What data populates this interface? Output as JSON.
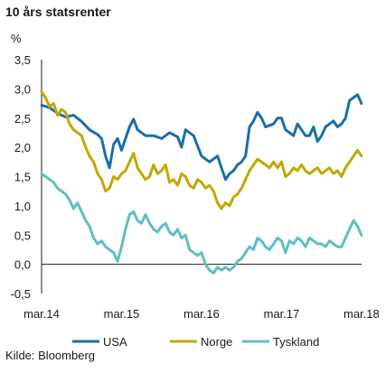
{
  "chart_data": {
    "type": "line",
    "title": "10 års statsrenter",
    "ylabel": "%",
    "source": "Kilde: Bloomberg",
    "ylim": [
      -0.5,
      3.5
    ],
    "yticks": [
      "3,5",
      "3,0",
      "2,5",
      "2,0",
      "1,5",
      "1,0",
      "0,5",
      "0,0",
      "-0,5"
    ],
    "xlim": [
      2014.0,
      2018.0
    ],
    "xticks": [
      {
        "value": 2014.0,
        "label": "mar.14"
      },
      {
        "value": 2015.0,
        "label": "mar.15"
      },
      {
        "value": 2016.0,
        "label": "mar.16"
      },
      {
        "value": 2017.0,
        "label": "mar.17"
      },
      {
        "value": 2018.0,
        "label": "mar.18"
      }
    ],
    "grid": false,
    "legend_position": "bottom",
    "series": [
      {
        "name": "USA",
        "color": "#1a6fa8",
        "points": [
          [
            2014.0,
            2.72
          ],
          [
            2014.1,
            2.68
          ],
          [
            2014.2,
            2.58
          ],
          [
            2014.3,
            2.52
          ],
          [
            2014.4,
            2.55
          ],
          [
            2014.5,
            2.44
          ],
          [
            2014.6,
            2.3
          ],
          [
            2014.7,
            2.22
          ],
          [
            2014.75,
            2.15
          ],
          [
            2014.8,
            1.85
          ],
          [
            2014.85,
            1.65
          ],
          [
            2014.9,
            2.05
          ],
          [
            2014.95,
            2.15
          ],
          [
            2015.0,
            1.95
          ],
          [
            2015.1,
            2.35
          ],
          [
            2015.15,
            2.48
          ],
          [
            2015.2,
            2.3
          ],
          [
            2015.3,
            2.2
          ],
          [
            2015.4,
            2.2
          ],
          [
            2015.5,
            2.15
          ],
          [
            2015.6,
            2.25
          ],
          [
            2015.7,
            2.18
          ],
          [
            2015.75,
            2.0
          ],
          [
            2015.8,
            2.3
          ],
          [
            2015.9,
            2.2
          ],
          [
            2016.0,
            1.85
          ],
          [
            2016.1,
            1.75
          ],
          [
            2016.2,
            1.85
          ],
          [
            2016.25,
            1.65
          ],
          [
            2016.3,
            1.45
          ],
          [
            2016.35,
            1.55
          ],
          [
            2016.4,
            1.6
          ],
          [
            2016.45,
            1.7
          ],
          [
            2016.5,
            1.75
          ],
          [
            2016.55,
            1.85
          ],
          [
            2016.6,
            2.35
          ],
          [
            2016.65,
            2.45
          ],
          [
            2016.7,
            2.6
          ],
          [
            2016.75,
            2.5
          ],
          [
            2016.8,
            2.35
          ],
          [
            2016.9,
            2.4
          ],
          [
            2016.95,
            2.5
          ],
          [
            2017.0,
            2.5
          ],
          [
            2017.05,
            2.3
          ],
          [
            2017.1,
            2.25
          ],
          [
            2017.15,
            2.2
          ],
          [
            2017.2,
            2.4
          ],
          [
            2017.25,
            2.3
          ],
          [
            2017.3,
            2.2
          ],
          [
            2017.35,
            2.2
          ],
          [
            2017.4,
            2.35
          ],
          [
            2017.45,
            2.1
          ],
          [
            2017.5,
            2.2
          ],
          [
            2017.55,
            2.35
          ],
          [
            2017.6,
            2.4
          ],
          [
            2017.65,
            2.45
          ],
          [
            2017.7,
            2.35
          ],
          [
            2017.75,
            2.4
          ],
          [
            2017.8,
            2.5
          ],
          [
            2017.85,
            2.8
          ],
          [
            2017.9,
            2.85
          ],
          [
            2017.95,
            2.9
          ],
          [
            2018.0,
            2.75
          ]
        ]
      },
      {
        "name": "Norge",
        "color": "#c2a800",
        "points": [
          [
            2014.0,
            2.95
          ],
          [
            2014.05,
            2.85
          ],
          [
            2014.1,
            2.7
          ],
          [
            2014.15,
            2.75
          ],
          [
            2014.2,
            2.55
          ],
          [
            2014.25,
            2.65
          ],
          [
            2014.3,
            2.6
          ],
          [
            2014.35,
            2.4
          ],
          [
            2014.4,
            2.3
          ],
          [
            2014.45,
            2.25
          ],
          [
            2014.5,
            2.2
          ],
          [
            2014.55,
            2.0
          ],
          [
            2014.6,
            1.85
          ],
          [
            2014.65,
            1.75
          ],
          [
            2014.7,
            1.55
          ],
          [
            2014.75,
            1.45
          ],
          [
            2014.8,
            1.25
          ],
          [
            2014.85,
            1.3
          ],
          [
            2014.9,
            1.5
          ],
          [
            2014.95,
            1.45
          ],
          [
            2015.0,
            1.55
          ],
          [
            2015.05,
            1.6
          ],
          [
            2015.1,
            1.75
          ],
          [
            2015.15,
            1.9
          ],
          [
            2015.2,
            1.65
          ],
          [
            2015.25,
            1.55
          ],
          [
            2015.3,
            1.45
          ],
          [
            2015.35,
            1.5
          ],
          [
            2015.4,
            1.7
          ],
          [
            2015.45,
            1.55
          ],
          [
            2015.5,
            1.6
          ],
          [
            2015.55,
            1.7
          ],
          [
            2015.6,
            1.4
          ],
          [
            2015.65,
            1.45
          ],
          [
            2015.7,
            1.35
          ],
          [
            2015.75,
            1.55
          ],
          [
            2015.8,
            1.5
          ],
          [
            2015.85,
            1.35
          ],
          [
            2015.9,
            1.3
          ],
          [
            2015.95,
            1.45
          ],
          [
            2016.0,
            1.4
          ],
          [
            2016.05,
            1.3
          ],
          [
            2016.1,
            1.35
          ],
          [
            2016.15,
            1.25
          ],
          [
            2016.2,
            1.05
          ],
          [
            2016.25,
            0.95
          ],
          [
            2016.3,
            1.05
          ],
          [
            2016.35,
            1.0
          ],
          [
            2016.4,
            1.15
          ],
          [
            2016.45,
            1.2
          ],
          [
            2016.5,
            1.3
          ],
          [
            2016.55,
            1.45
          ],
          [
            2016.6,
            1.6
          ],
          [
            2016.65,
            1.7
          ],
          [
            2016.7,
            1.8
          ],
          [
            2016.75,
            1.75
          ],
          [
            2016.8,
            1.7
          ],
          [
            2016.85,
            1.65
          ],
          [
            2016.9,
            1.75
          ],
          [
            2016.95,
            1.65
          ],
          [
            2017.0,
            1.75
          ],
          [
            2017.05,
            1.5
          ],
          [
            2017.1,
            1.55
          ],
          [
            2017.15,
            1.65
          ],
          [
            2017.2,
            1.6
          ],
          [
            2017.25,
            1.7
          ],
          [
            2017.3,
            1.6
          ],
          [
            2017.35,
            1.55
          ],
          [
            2017.4,
            1.6
          ],
          [
            2017.45,
            1.65
          ],
          [
            2017.5,
            1.55
          ],
          [
            2017.55,
            1.6
          ],
          [
            2017.6,
            1.65
          ],
          [
            2017.65,
            1.55
          ],
          [
            2017.7,
            1.6
          ],
          [
            2017.75,
            1.5
          ],
          [
            2017.8,
            1.65
          ],
          [
            2017.85,
            1.75
          ],
          [
            2017.9,
            1.85
          ],
          [
            2017.95,
            1.95
          ],
          [
            2018.0,
            1.85
          ]
        ]
      },
      {
        "name": "Tyskland",
        "color": "#5fbfbf",
        "points": [
          [
            2014.0,
            1.55
          ],
          [
            2014.05,
            1.5
          ],
          [
            2014.1,
            1.45
          ],
          [
            2014.15,
            1.4
          ],
          [
            2014.2,
            1.3
          ],
          [
            2014.25,
            1.25
          ],
          [
            2014.3,
            1.2
          ],
          [
            2014.35,
            1.1
          ],
          [
            2014.4,
            0.95
          ],
          [
            2014.45,
            1.05
          ],
          [
            2014.5,
            0.9
          ],
          [
            2014.55,
            0.75
          ],
          [
            2014.6,
            0.65
          ],
          [
            2014.65,
            0.45
          ],
          [
            2014.7,
            0.35
          ],
          [
            2014.75,
            0.4
          ],
          [
            2014.8,
            0.3
          ],
          [
            2014.85,
            0.25
          ],
          [
            2014.9,
            0.2
          ],
          [
            2014.95,
            0.05
          ],
          [
            2015.0,
            0.3
          ],
          [
            2015.05,
            0.6
          ],
          [
            2015.1,
            0.85
          ],
          [
            2015.15,
            0.9
          ],
          [
            2015.2,
            0.75
          ],
          [
            2015.25,
            0.7
          ],
          [
            2015.3,
            0.85
          ],
          [
            2015.35,
            0.7
          ],
          [
            2015.4,
            0.6
          ],
          [
            2015.45,
            0.55
          ],
          [
            2015.5,
            0.65
          ],
          [
            2015.55,
            0.7
          ],
          [
            2015.6,
            0.55
          ],
          [
            2015.65,
            0.5
          ],
          [
            2015.7,
            0.6
          ],
          [
            2015.75,
            0.45
          ],
          [
            2015.8,
            0.5
          ],
          [
            2015.85,
            0.25
          ],
          [
            2015.9,
            0.2
          ],
          [
            2015.95,
            0.15
          ],
          [
            2016.0,
            0.2
          ],
          [
            2016.05,
            0.0
          ],
          [
            2016.1,
            -0.1
          ],
          [
            2016.15,
            -0.15
          ],
          [
            2016.2,
            -0.05
          ],
          [
            2016.25,
            -0.1
          ],
          [
            2016.3,
            -0.05
          ],
          [
            2016.35,
            -0.1
          ],
          [
            2016.4,
            -0.05
          ],
          [
            2016.45,
            0.05
          ],
          [
            2016.5,
            0.1
          ],
          [
            2016.55,
            0.2
          ],
          [
            2016.6,
            0.3
          ],
          [
            2016.65,
            0.25
          ],
          [
            2016.7,
            0.45
          ],
          [
            2016.75,
            0.4
          ],
          [
            2016.8,
            0.3
          ],
          [
            2016.85,
            0.25
          ],
          [
            2016.9,
            0.35
          ],
          [
            2016.95,
            0.45
          ],
          [
            2017.0,
            0.4
          ],
          [
            2017.05,
            0.2
          ],
          [
            2017.1,
            0.4
          ],
          [
            2017.15,
            0.35
          ],
          [
            2017.2,
            0.45
          ],
          [
            2017.25,
            0.4
          ],
          [
            2017.3,
            0.3
          ],
          [
            2017.35,
            0.45
          ],
          [
            2017.4,
            0.4
          ],
          [
            2017.45,
            0.35
          ],
          [
            2017.5,
            0.35
          ],
          [
            2017.55,
            0.3
          ],
          [
            2017.6,
            0.4
          ],
          [
            2017.65,
            0.35
          ],
          [
            2017.7,
            0.3
          ],
          [
            2017.75,
            0.3
          ],
          [
            2017.8,
            0.45
          ],
          [
            2017.85,
            0.6
          ],
          [
            2017.9,
            0.75
          ],
          [
            2017.95,
            0.65
          ],
          [
            2018.0,
            0.5
          ]
        ]
      }
    ]
  }
}
